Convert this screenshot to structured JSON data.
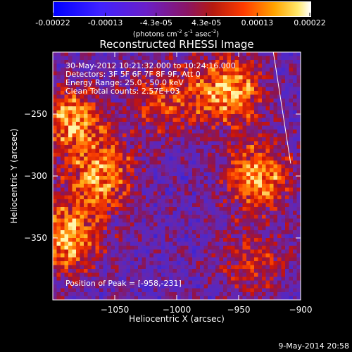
{
  "colorbar": {
    "tick_labels": [
      "-0.00022",
      "-0.00013",
      "-4.3e-05",
      "4.3e-05",
      "0.00013",
      "0.00022"
    ],
    "unit_prefix": "(photons cm",
    "unit_exp1": "-2",
    "unit_mid": " s",
    "unit_exp2": "-1",
    "unit_mid2": " asec",
    "unit_exp3": "-2",
    "unit_suffix": ")",
    "range": [
      -0.00022,
      0.00022
    ]
  },
  "info": {
    "line1": "30-May-2012 10:21:32.000 to 10:24:16.000",
    "line2": "Detectors: 3F 5F 6F 7F 8F 9F, Att 0",
    "line3": "Energy Range: 25.0 - 50.0 keV",
    "line4": "Clean     Total counts: 2.57E+03",
    "peak": "Position of Peak = [-958,-231]"
  },
  "footer_date": "9-May-2014 20:58",
  "chart_data": {
    "type": "heatmap",
    "title": "Reconstructed RHESSI Image",
    "xlabel": "Heliocentric X (arcsec)",
    "ylabel": "Heliocentric Y (arcsec)",
    "xlim": [
      -1100,
      -900
    ],
    "ylim": [
      -400,
      -200
    ],
    "x_ticks": [
      -1050,
      -1000,
      -950,
      -900
    ],
    "x_tick_labels": [
      "−1050",
      "−1000",
      "−950",
      "−900"
    ],
    "y_ticks": [
      -250,
      -300,
      -350
    ],
    "y_tick_labels": [
      "−250",
      "−300",
      "−350"
    ],
    "peak_position": [
      -958,
      -231
    ],
    "limb_line": [
      [
        -922,
        -200
      ],
      [
        -908,
        -290
      ]
    ],
    "bright_regions": [
      {
        "x": -1085,
        "y": -255,
        "level": 0.9
      },
      {
        "x": -1090,
        "y": -350,
        "level": 1.0
      },
      {
        "x": -1060,
        "y": -300,
        "level": 0.85
      },
      {
        "x": -958,
        "y": -231,
        "level": 1.0
      },
      {
        "x": -935,
        "y": -300,
        "level": 0.9
      },
      {
        "x": -1010,
        "y": -240,
        "level": 0.6
      },
      {
        "x": -940,
        "y": -370,
        "level": 0.55
      }
    ]
  }
}
